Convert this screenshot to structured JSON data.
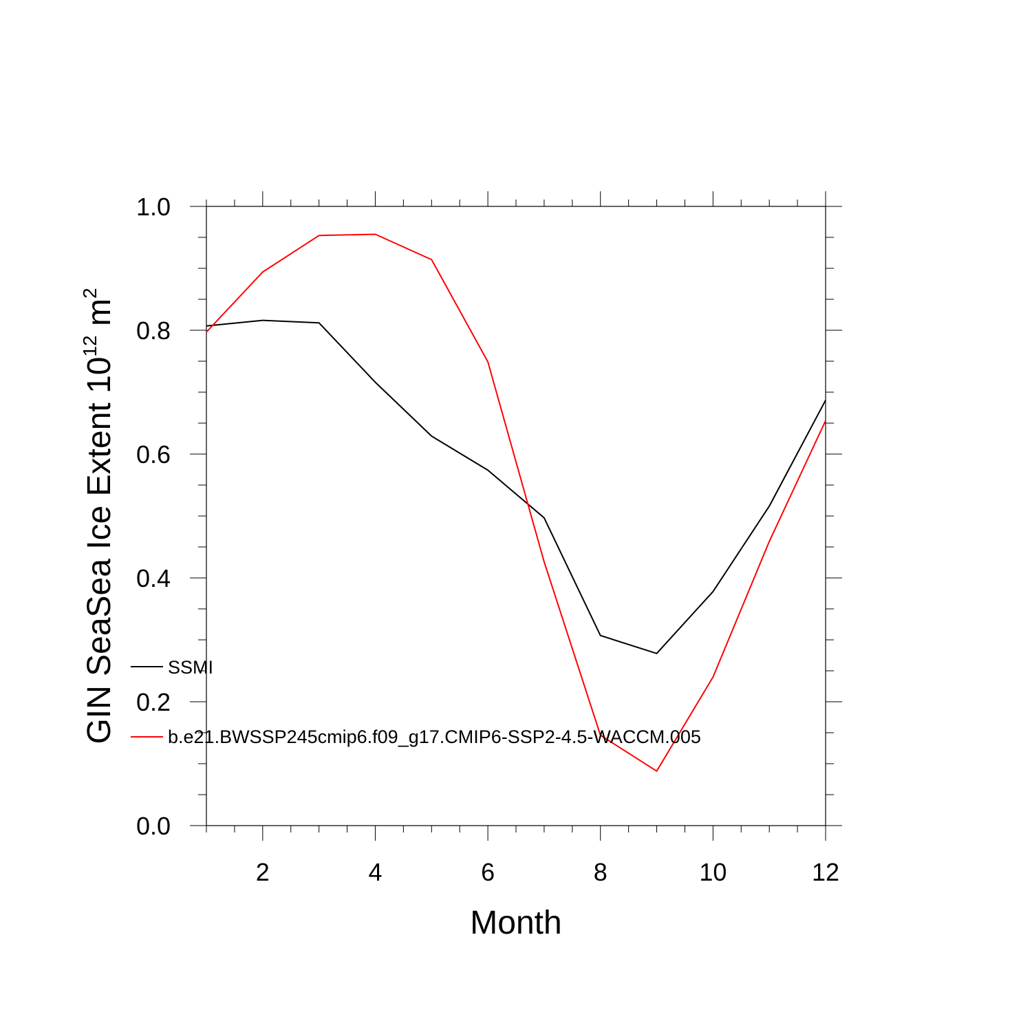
{
  "chart_data": {
    "type": "line",
    "xlabel": "Month",
    "ylabel": {
      "main": "GIN SeaSea Ice Extent 10",
      "exp": "12",
      "unit": " m",
      "unit_exp": "2"
    },
    "xlim": [
      1,
      12
    ],
    "ylim": [
      0.0,
      1.0
    ],
    "x_ticks": [
      2,
      4,
      6,
      8,
      10,
      12
    ],
    "y_ticks": [
      0.0,
      0.2,
      0.4,
      0.6,
      0.8,
      1.0
    ],
    "y_tick_labels": [
      "0.0",
      "0.2",
      "0.4",
      "0.6",
      "0.8",
      "1.0"
    ],
    "grid": false,
    "legend_placement": "lower-left",
    "x": [
      1,
      2,
      3,
      4,
      5,
      6,
      7,
      8,
      9,
      10,
      11,
      12
    ],
    "series": [
      {
        "name": "SSMI",
        "color": "#000000",
        "values": [
          0.807,
          0.816,
          0.812,
          0.716,
          0.629,
          0.574,
          0.497,
          0.307,
          0.278,
          0.378,
          0.516,
          0.687
        ]
      },
      {
        "name": "b.e21.BWSSP245cmip6.f09_g17.CMIP6-SSP2-4.5-WACCM.005",
        "color": "#ff0000",
        "values": [
          0.797,
          0.894,
          0.953,
          0.955,
          0.914,
          0.749,
          0.426,
          0.146,
          0.088,
          0.24,
          0.459,
          0.654
        ]
      }
    ]
  }
}
